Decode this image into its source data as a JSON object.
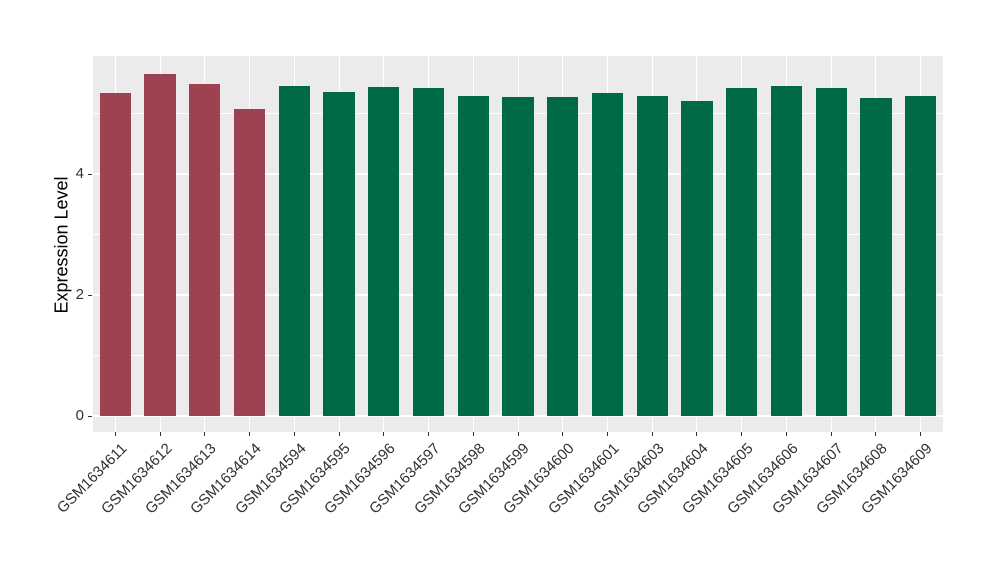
{
  "chart_data": {
    "type": "bar",
    "title": "",
    "xlabel": "",
    "ylabel": "Expression Level",
    "categories": [
      "GSM1634611",
      "GSM1634612",
      "GSM1634613",
      "GSM1634614",
      "GSM1634594",
      "GSM1634595",
      "GSM1634596",
      "GSM1634597",
      "GSM1634598",
      "GSM1634599",
      "GSM1634600",
      "GSM1634601",
      "GSM1634603",
      "GSM1634604",
      "GSM1634605",
      "GSM1634606",
      "GSM1634607",
      "GSM1634608",
      "GSM1634609"
    ],
    "values": [
      5.34,
      5.65,
      5.49,
      5.07,
      5.45,
      5.36,
      5.44,
      5.42,
      5.29,
      5.27,
      5.27,
      5.34,
      5.29,
      5.21,
      5.42,
      5.46,
      5.42,
      5.26,
      5.29
    ],
    "groups": [
      "red",
      "red",
      "red",
      "red",
      "green",
      "green",
      "green",
      "green",
      "green",
      "green",
      "green",
      "green",
      "green",
      "green",
      "green",
      "green",
      "green",
      "green",
      "green"
    ],
    "group_colors": {
      "red": "#9E4252",
      "green": "#006A48"
    },
    "ylim": [
      0,
      5.95
    ],
    "yticks": [
      0,
      2,
      4
    ],
    "ytick_labels": [
      "0",
      "2",
      "4"
    ],
    "minor_gridlines": [
      1,
      3,
      5
    ],
    "grid": true,
    "legend": "none",
    "panel_background": "#EBEBEB",
    "gridline_color": "#FFFFFF",
    "bar_width_fraction": 0.7
  }
}
